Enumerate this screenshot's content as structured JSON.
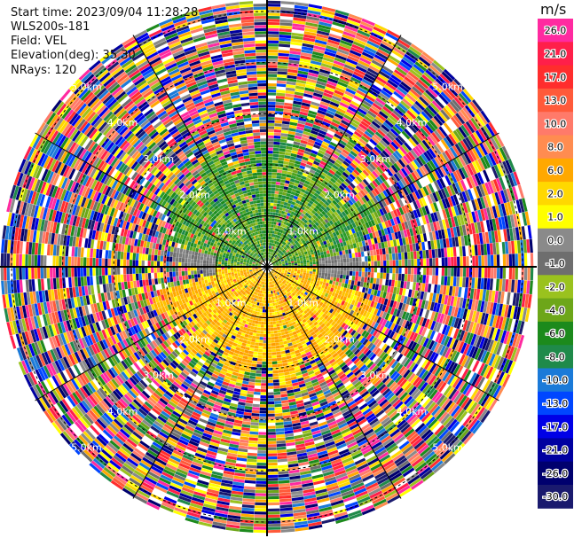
{
  "info": {
    "start_time": "Start time: 2023/09/04 11:28:28",
    "instrument": "WLS200s-181",
    "field": "Field: VEL",
    "elevation": "Elevation(deg): 35.30",
    "nrays": "NRays: 120"
  },
  "colorbar": {
    "unit": "m/s",
    "tick_labels": [
      "26.0",
      "21.0",
      "17.0",
      "13.0",
      "10.0",
      "8.0",
      "6.0",
      "2.0",
      "1.0",
      "0.0",
      "-1.0",
      "-2.0",
      "-4.0",
      "-6.0",
      "-8.0",
      "-10.0",
      "-13.0",
      "-17.0",
      "-21.0",
      "-26.0",
      "-30.0"
    ],
    "colors": [
      "#ff2aa0",
      "#ff1f4a",
      "#ff2d2d",
      "#ff5a3a",
      "#ff7a6a",
      "#ff8c50",
      "#ffa800",
      "#ffd800",
      "#ffff00",
      "#8a8a8a",
      "#6e6e6e",
      "#9ac21e",
      "#6da619",
      "#1c8a1c",
      "#1f8a4a",
      "#1b7ad8",
      "#0046ff",
      "#0000e6",
      "#0000a0",
      "#00006e",
      "#1a1a6e"
    ]
  },
  "chart_data": {
    "type": "heatmap",
    "projection": "polar-ppi",
    "field": "VEL",
    "nrays": 120,
    "range_rings_km": [
      1.0,
      2.0,
      3.0,
      4.0,
      5.0
    ],
    "ring_labels": [
      "1.0km",
      "2.0km",
      "3.0km",
      "4.0km",
      "5.0km"
    ],
    "vlim": [
      -30.0,
      26.0
    ],
    "grid": true,
    "sectors_near_range": [
      {
        "azimuth_from_deg": 270,
        "azimuth_to_deg": 90,
        "velocity_class": "negative (green, -2 to -6 m/s)"
      },
      {
        "azimuth_from_deg": 90,
        "azimuth_to_deg": 270,
        "velocity_class": "positive (orange/yellow, 2 to 6 m/s)"
      }
    ],
    "far_range": "noise (random velocities across full scale)"
  }
}
